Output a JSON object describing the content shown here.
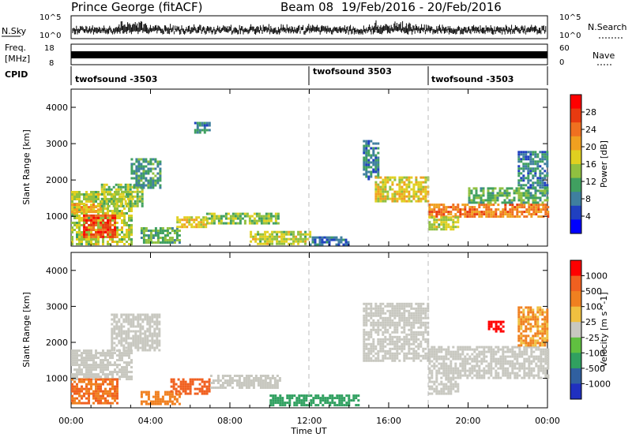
{
  "header": {
    "title": "Prince George (fitACF)",
    "beam": "Beam 08",
    "date_range": "19/Feb/2016 - 20/Feb/2016"
  },
  "top_panels": {
    "nsky_label": "N.Sky",
    "nsearch_label": "N.Search",
    "nsky_ticks": [
      "10^5",
      "10^0"
    ],
    "nsky_right_ticks": [
      "10^5",
      "10^0"
    ],
    "freq_label": "Freq.",
    "freq_unit": "[MHz]",
    "freq_ticks": [
      "18",
      "8"
    ],
    "nave_label": "Nave",
    "nave_ticks": [
      "60",
      "0"
    ],
    "cpid_label": "CPID",
    "cpid_segments": [
      {
        "name": "twofsound -3503",
        "start_hour": 0
      },
      {
        "name": "twofsound 3503",
        "start_hour": 12
      },
      {
        "name": "twofsound -3503",
        "start_hour": 18
      }
    ]
  },
  "chart_data": [
    {
      "type": "heatmap",
      "name": "power",
      "ylabel": "Slant Range [km]",
      "yticks": [
        "4000",
        "3000",
        "2000",
        "1000"
      ],
      "ylim": [
        180,
        4500
      ],
      "xlim_hours": [
        0,
        24
      ],
      "colorbar": {
        "label": "Power [dB]",
        "ticks": [
          "28",
          "24",
          "20",
          "16",
          "12",
          "8",
          "4"
        ],
        "colors": [
          "#0000ff",
          "#2040c0",
          "#3f7f9f",
          "#40a060",
          "#90c040",
          "#e0d020",
          "#f0a020",
          "#f07020",
          "#e83a10",
          "#ff0000"
        ]
      },
      "regions": [
        {
          "t0": 0.0,
          "t1": 3.0,
          "r0": 250,
          "r1": 1700,
          "level": 16
        },
        {
          "t0": 0.6,
          "t1": 2.2,
          "r0": 400,
          "r1": 1050,
          "level": 28
        },
        {
          "t0": 0.0,
          "t1": 1.5,
          "r0": 1100,
          "r1": 1350,
          "level": 20
        },
        {
          "t0": 1.5,
          "t1": 3.6,
          "r0": 1300,
          "r1": 1900,
          "level": 14
        },
        {
          "t0": 3.0,
          "t1": 4.5,
          "r0": 1800,
          "r1": 2600,
          "level": 10
        },
        {
          "t0": 3.5,
          "t1": 5.5,
          "r0": 300,
          "r1": 700,
          "level": 12
        },
        {
          "t0": 5.3,
          "t1": 6.8,
          "r0": 700,
          "r1": 1000,
          "level": 18
        },
        {
          "t0": 6.8,
          "t1": 10.5,
          "r0": 800,
          "r1": 1100,
          "level": 14
        },
        {
          "t0": 6.2,
          "t1": 7.0,
          "r0": 3300,
          "r1": 3600,
          "level": 8
        },
        {
          "t0": 9.0,
          "t1": 12.0,
          "r0": 250,
          "r1": 600,
          "level": 16
        },
        {
          "t0": 12.0,
          "t1": 14.0,
          "r0": 250,
          "r1": 450,
          "level": 6
        },
        {
          "t0": 14.7,
          "t1": 15.5,
          "r0": 2000,
          "r1": 3100,
          "level": 8
        },
        {
          "t0": 15.3,
          "t1": 18.0,
          "r0": 1400,
          "r1": 2100,
          "level": 18
        },
        {
          "t0": 18.0,
          "t1": 24.0,
          "r0": 1000,
          "r1": 1350,
          "level": 24
        },
        {
          "t0": 18.0,
          "t1": 19.5,
          "r0": 650,
          "r1": 1000,
          "level": 16
        },
        {
          "t0": 20.0,
          "t1": 24.0,
          "r0": 1350,
          "r1": 1800,
          "level": 12
        },
        {
          "t0": 22.5,
          "t1": 24.0,
          "r0": 1800,
          "r1": 2800,
          "level": 8
        }
      ]
    },
    {
      "type": "heatmap",
      "name": "velocity",
      "ylabel": "Slant Range [km]",
      "yticks": [
        "4000",
        "3000",
        "2000",
        "1000"
      ],
      "ylim": [
        180,
        4500
      ],
      "xlim_hours": [
        0,
        24
      ],
      "xticks": [
        "00:00",
        "04:00",
        "08:00",
        "12:00",
        "16:00",
        "20:00",
        "00:00"
      ],
      "xlabel": "Time UT",
      "colorbar": {
        "label": "Velocity [m s^-1]",
        "ticks": [
          "1000",
          "500",
          "100",
          "25",
          "-25",
          "-100",
          "-500",
          "-1000"
        ],
        "colors": [
          "#2030c0",
          "#3060a0",
          "#30a060",
          "#60c040",
          "#c8c8c0",
          "#f0c040",
          "#f08020",
          "#f06020",
          "#ff0000"
        ]
      },
      "regions": [
        {
          "t0": 0.0,
          "t1": 3.0,
          "r0": 1000,
          "r1": 1800,
          "level": "ground"
        },
        {
          "t0": 0.0,
          "t1": 2.3,
          "r0": 300,
          "r1": 1000,
          "level": -300
        },
        {
          "t0": 2.0,
          "t1": 4.5,
          "r0": 1800,
          "r1": 2800,
          "level": "ground"
        },
        {
          "t0": 3.5,
          "t1": 5.5,
          "r0": 300,
          "r1": 650,
          "level": -200
        },
        {
          "t0": 5.0,
          "t1": 7.0,
          "r0": 600,
          "r1": 1000,
          "level": -400
        },
        {
          "t0": 7.0,
          "t1": 10.5,
          "r0": 750,
          "r1": 1100,
          "level": "ground"
        },
        {
          "t0": 10.0,
          "t1": 14.5,
          "r0": 250,
          "r1": 550,
          "level": 100
        },
        {
          "t0": 14.7,
          "t1": 18.0,
          "r0": 1500,
          "r1": 3100,
          "level": "ground"
        },
        {
          "t0": 18.0,
          "t1": 24.0,
          "r0": 1000,
          "r1": 1900,
          "level": "ground"
        },
        {
          "t0": 18.0,
          "t1": 19.5,
          "r0": 600,
          "r1": 1000,
          "level": "ground"
        },
        {
          "t0": 21.0,
          "t1": 21.8,
          "r0": 2300,
          "r1": 2600,
          "level": -800
        },
        {
          "t0": 22.5,
          "t1": 24.0,
          "r0": 1900,
          "r1": 3000,
          "level": -100
        }
      ]
    }
  ]
}
